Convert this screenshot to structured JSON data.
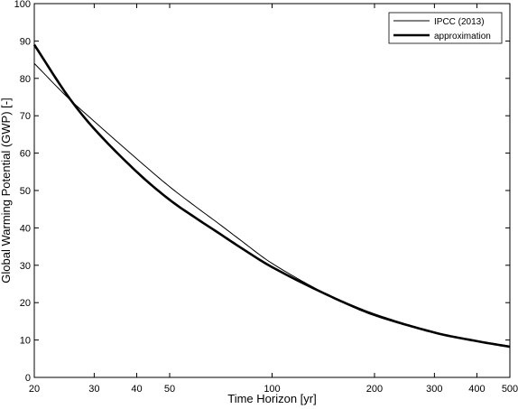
{
  "chart_data": {
    "type": "line",
    "xlabel": "Time Horizon [yr]",
    "ylabel": "Global Warming Potential (GWP) [-]",
    "x_scale": "log",
    "xlim": [
      20,
      500
    ],
    "ylim": [
      0,
      100
    ],
    "x_ticks": [
      20,
      30,
      40,
      50,
      100,
      200,
      300,
      400,
      500
    ],
    "y_ticks": [
      0,
      10,
      20,
      30,
      40,
      50,
      60,
      70,
      80,
      90,
      100
    ],
    "grid": false,
    "legend_position": "top-right",
    "series": [
      {
        "name": "IPCC (2013)",
        "color": "#000000",
        "style": "thin",
        "points": [
          [
            20,
            84
          ],
          [
            25,
            75
          ],
          [
            30,
            68.5
          ],
          [
            40,
            58.5
          ],
          [
            50,
            51
          ],
          [
            60,
            45.5
          ],
          [
            70,
            41
          ],
          [
            80,
            37
          ],
          [
            100,
            30.5
          ],
          [
            150,
            21.5
          ],
          [
            200,
            16.5
          ],
          [
            300,
            12
          ],
          [
            400,
            9.7
          ],
          [
            500,
            8.4
          ]
        ]
      },
      {
        "name": "approximation",
        "color": "#000000",
        "style": "thick",
        "points": [
          [
            20,
            89
          ],
          [
            25,
            75.5
          ],
          [
            30,
            66.5
          ],
          [
            40,
            55
          ],
          [
            50,
            47.5
          ],
          [
            60,
            42.5
          ],
          [
            70,
            38.5
          ],
          [
            80,
            35
          ],
          [
            100,
            29.5
          ],
          [
            150,
            21.5
          ],
          [
            200,
            16.8
          ],
          [
            300,
            12
          ],
          [
            400,
            9.7
          ],
          [
            500,
            8.2
          ]
        ]
      }
    ]
  }
}
